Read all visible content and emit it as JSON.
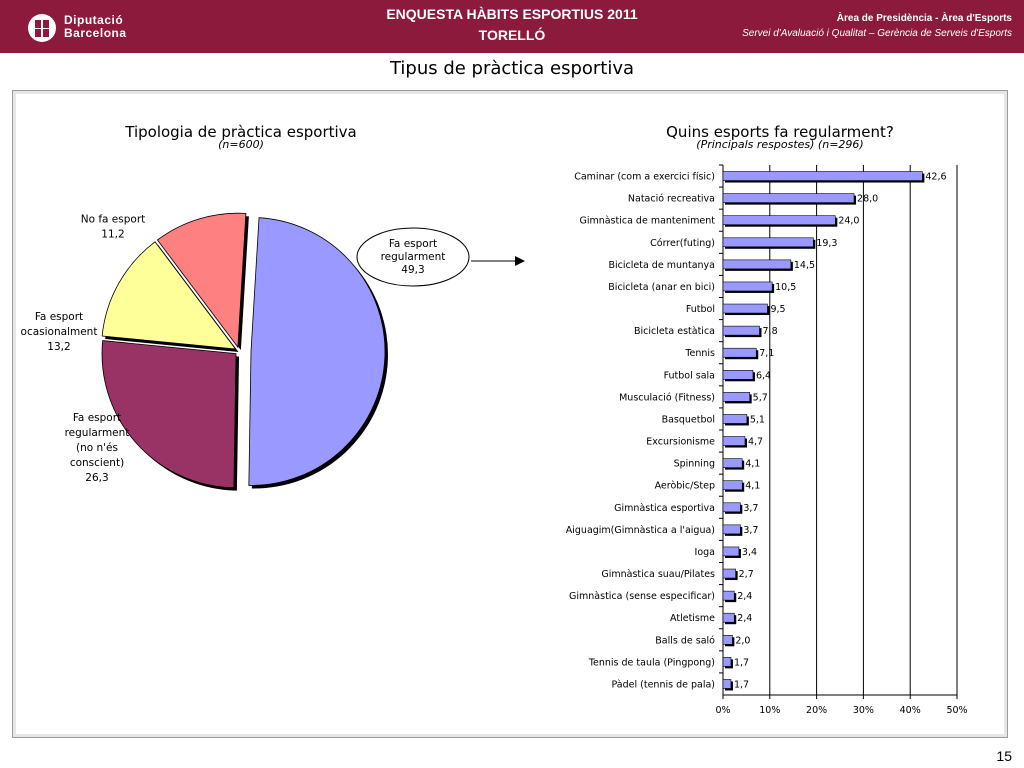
{
  "header": {
    "logo_line1": "Diputació",
    "logo_line2": "Barcelona",
    "title_line1": "ENQUESTA HÀBITS ESPORTIUS 2011",
    "title_line2": "TORELLÓ",
    "right_line1": "Àrea de Presidència   -   Àrea d'Esports",
    "right_line2": "Servei d'Avaluació i Qualitat – Gerència de Serveis d'Esports",
    "brand_color": "#8b1a3c"
  },
  "page_title": "Tipus de pràctica esportiva",
  "page_number": "15",
  "chart_data": [
    {
      "type": "pie",
      "title": "Tipologia de pràctica esportiva",
      "subtitle": "(n=600)",
      "slices": [
        {
          "label": "Fa esport regularment",
          "value": 49.3,
          "value_label": "49,3",
          "color": "#9999ff"
        },
        {
          "label": "Fa esport regularment (no n'és conscient)",
          "value": 26.3,
          "value_label": "26,3",
          "color": "#993366"
        },
        {
          "label": "Fa esport ocasionalment",
          "value": 13.2,
          "value_label": "13,2",
          "color": "#ffff99"
        },
        {
          "label": "No fa esport",
          "value": 11.2,
          "value_label": "11,2",
          "color": "#ff8080"
        }
      ]
    },
    {
      "type": "bar",
      "orientation": "horizontal",
      "title": "Quins esports fa regularment?",
      "subtitle": "(Principals respostes) (n=296)",
      "xlim": [
        0,
        50
      ],
      "xticks": [
        "0%",
        "10%",
        "20%",
        "30%",
        "40%",
        "50%"
      ],
      "grid": true,
      "bar_color": "#9999ff",
      "categories": [
        "Caminar (com a exercici físic)",
        "Natació recreativa",
        "Gimnàstica de manteniment",
        "Córrer(futing)",
        "Bicicleta de muntanya",
        "Bicicleta (anar en bici)",
        "Futbol",
        "Bicicleta estàtica",
        "Tennis",
        "Futbol sala",
        "Musculació (Fitness)",
        "Basquetbol",
        "Excursionisme",
        "Spinning",
        "Aeròbic/Step",
        "Gimnàstica esportiva",
        "Aiguagim(Gimnàstica a l'aigua)",
        "Ioga",
        "Gimnàstica suau/Pilates",
        "Gimnàstica (sense especificar)",
        "Atletisme",
        "Balls de saló",
        "Tennis de taula (Pingpong)",
        "Pàdel (tennis de pala)"
      ],
      "values": [
        42.6,
        28.0,
        24.0,
        19.3,
        14.5,
        10.5,
        9.5,
        7.8,
        7.1,
        6.4,
        5.7,
        5.1,
        4.7,
        4.1,
        4.1,
        3.7,
        3.7,
        3.4,
        2.7,
        2.4,
        2.4,
        2.0,
        1.7,
        1.7
      ],
      "value_labels": [
        "42,6",
        "28,0",
        "24,0",
        "19,3",
        "14,5",
        "10,5",
        "9,5",
        "7,8",
        "7,1",
        "6,4",
        "5,7",
        "5,1",
        "4,7",
        "4,1",
        "4,1",
        "3,7",
        "3,7",
        "3,4",
        "2,7",
        "2,4",
        "2,4",
        "2,0",
        "1,7",
        "1,7"
      ]
    }
  ]
}
